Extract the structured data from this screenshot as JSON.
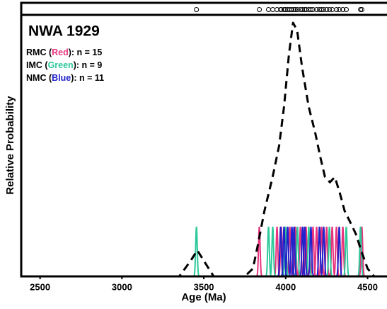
{
  "chart_data": {
    "type": "probability-density",
    "title": "NWA 1929",
    "x_label": "Age (Ma)",
    "y_label": "Relative Probability",
    "xlim": [
      2385,
      4610
    ],
    "xticks": [
      2500,
      3000,
      3500,
      4000,
      4500
    ],
    "ylim": [
      0,
      1
    ],
    "annotations": [
      {
        "parts": [
          "RMC (",
          "Red",
          "): n = 15"
        ],
        "color": "#e8337e"
      },
      {
        "parts": [
          "IMC (",
          "Green",
          "): n = 9"
        ],
        "color": "#2ec99a"
      },
      {
        "parts": [
          "NMC (",
          "Blue",
          "): n = 11"
        ],
        "color": "#2222cc"
      }
    ],
    "spike_height": 0.19,
    "series": [
      {
        "color": "#e8337e",
        "ages": [
          3839,
          3947,
          3973,
          4025,
          4059,
          4090,
          4124,
          4167,
          4189,
          4219,
          4250,
          4284,
          4310,
          4349,
          4465
        ]
      },
      {
        "color": "#2ec99a",
        "ages": [
          3455,
          3895,
          3921,
          3999,
          4072,
          4141,
          4267,
          4370,
          4457
        ]
      },
      {
        "color": "#2222cc",
        "ages": [
          3969,
          3990,
          4012,
          4038,
          4051,
          4103,
          4116,
          4154,
          4206,
          4232,
          4327
        ]
      }
    ],
    "density": {
      "color": "#000000",
      "x": [
        2385,
        3350,
        3420,
        3460,
        3510,
        3560,
        3750,
        3800,
        3830,
        3870,
        3920,
        3960,
        3990,
        4020,
        4045,
        4070,
        4100,
        4140,
        4180,
        4210,
        4240,
        4270,
        4300,
        4330,
        4360,
        4400,
        4430,
        4460,
        4500,
        4540,
        4610
      ],
      "y": [
        0,
        0,
        0.06,
        0.1,
        0.05,
        0,
        0,
        0.03,
        0.12,
        0.25,
        0.38,
        0.5,
        0.65,
        0.85,
        0.97,
        0.94,
        0.8,
        0.65,
        0.55,
        0.46,
        0.38,
        0.36,
        0.38,
        0.32,
        0.25,
        0.2,
        0.16,
        0.1,
        0.03,
        0,
        0
      ]
    }
  }
}
